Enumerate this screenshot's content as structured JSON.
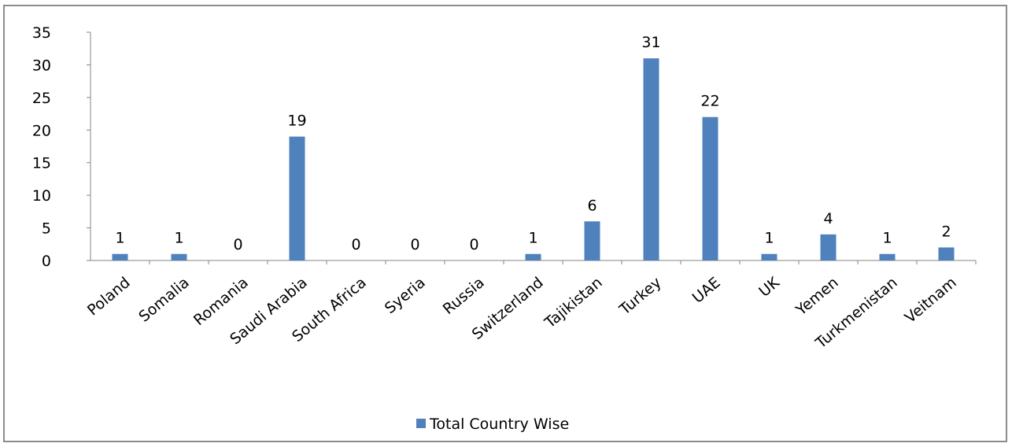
{
  "chart_data": {
    "type": "bar",
    "categories": [
      "Poland",
      "Somalia",
      "Romania",
      "Saudi Arabia",
      "South Africa",
      "Syeria",
      "Russia",
      "Switzerland",
      "Tajikistan",
      "Turkey",
      "UAE",
      "UK",
      "Yemen",
      "Turkmenistan",
      "Veitnam"
    ],
    "series": [
      {
        "name": "Total Country Wise",
        "values": [
          1,
          1,
          0,
          19,
          0,
          0,
          0,
          1,
          6,
          31,
          22,
          1,
          4,
          1,
          2
        ]
      }
    ],
    "ylim": [
      0,
      35
    ],
    "yticks": [
      0,
      5,
      10,
      15,
      20,
      25,
      30,
      35
    ],
    "grid": false,
    "legend": "bottom",
    "data_labels": true,
    "bar_color": "#4f81bd",
    "axis_color": "#868686"
  }
}
